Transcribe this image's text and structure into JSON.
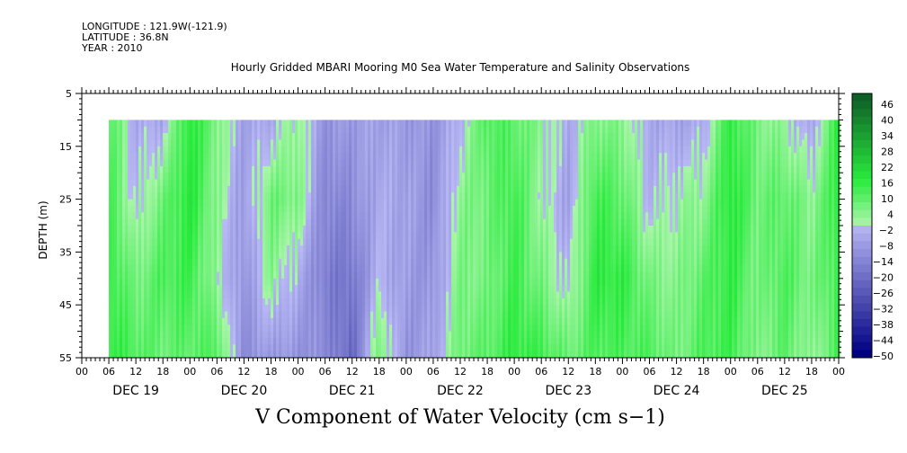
{
  "header": {
    "longitude": "LONGITUDE : 121.9W(-121.9)",
    "latitude": "LATITUDE : 36.8N",
    "year": "YEAR : 2010"
  },
  "chart_data": {
    "type": "heatmap",
    "title": "Hourly Gridded MBARI Mooring M0 Sea Water Temperature and Salinity Observations",
    "caption": "V Component of Water Velocity (cm s−1)",
    "ylabel": "DEPTH (m)",
    "ylim": [
      5,
      55
    ],
    "y_inverted": true,
    "yticks": [
      "5",
      "15",
      "25",
      "35",
      "45",
      "55"
    ],
    "hour_ticks": [
      "00",
      "06",
      "12",
      "18",
      "00",
      "06",
      "12",
      "18",
      "00",
      "06",
      "12",
      "18",
      "00",
      "06",
      "12",
      "18",
      "00",
      "06",
      "12",
      "18",
      "00",
      "06",
      "12",
      "18",
      "00",
      "06",
      "12",
      "18",
      "00"
    ],
    "days": [
      "DEC 19",
      "DEC 20",
      "DEC 21",
      "DEC 22",
      "DEC 23",
      "DEC 24",
      "DEC 25"
    ],
    "data_depth_range": [
      10,
      55
    ],
    "data_start": "DEC 19 06",
    "data_end": "DEC 26 00",
    "colorbar": {
      "labels": [
        "46",
        "40",
        "34",
        "28",
        "22",
        "16",
        "10",
        "4",
        "−2",
        "−8",
        "−14",
        "−20",
        "−26",
        "−32",
        "−38",
        "−44",
        "−50"
      ],
      "levels": [
        49,
        46,
        43,
        40,
        37,
        34,
        31,
        28,
        25,
        22,
        19,
        16,
        13,
        10,
        7,
        4,
        1,
        -2,
        -5,
        -8,
        -11,
        -14,
        -17,
        -20,
        -23,
        -26,
        -29,
        -32,
        -35,
        -38,
        -41,
        -44,
        -47,
        -50
      ]
    },
    "velocity_columns": [
      {
        "x": "DEC 19 06",
        "v": [
          12,
          14,
          16,
          16
        ]
      },
      {
        "x": "DEC 19 12",
        "v": [
          -4,
          -2,
          6,
          12
        ]
      },
      {
        "x": "DEC 19 18",
        "v": [
          -4,
          8,
          12,
          8
        ]
      },
      {
        "x": "DEC 20 00",
        "v": [
          18,
          18,
          14,
          10
        ]
      },
      {
        "x": "DEC 20 06",
        "v": [
          6,
          4,
          2,
          12
        ]
      },
      {
        "x": "DEC 20 12",
        "v": [
          -6,
          -8,
          -10,
          -12
        ]
      },
      {
        "x": "DEC 20 18",
        "v": [
          -4,
          8,
          4,
          -8
        ]
      },
      {
        "x": "DEC 21 00",
        "v": [
          4,
          6,
          -4,
          -10
        ]
      },
      {
        "x": "DEC 21 06",
        "v": [
          -10,
          -14,
          -16,
          -12
        ]
      },
      {
        "x": "DEC 21 12",
        "v": [
          -8,
          -12,
          -18,
          -22
        ]
      },
      {
        "x": "DEC 21 18",
        "v": [
          -6,
          -4,
          -2,
          8
        ]
      },
      {
        "x": "DEC 22 00",
        "v": [
          -8,
          -6,
          -8,
          -10
        ]
      },
      {
        "x": "DEC 22 06",
        "v": [
          -10,
          -12,
          -10,
          -6
        ]
      },
      {
        "x": "DEC 22 12",
        "v": [
          -2,
          4,
          6,
          8
        ]
      },
      {
        "x": "DEC 22 18",
        "v": [
          12,
          8,
          6,
          10
        ]
      },
      {
        "x": "DEC 23 00",
        "v": [
          10,
          14,
          14,
          16
        ]
      },
      {
        "x": "DEC 23 06",
        "v": [
          4,
          2,
          6,
          14
        ]
      },
      {
        "x": "DEC 23 12",
        "v": [
          -4,
          -6,
          -2,
          8
        ]
      },
      {
        "x": "DEC 23 18",
        "v": [
          6,
          14,
          16,
          12
        ]
      },
      {
        "x": "DEC 24 00",
        "v": [
          4,
          10,
          16,
          12
        ]
      },
      {
        "x": "DEC 24 06",
        "v": [
          -4,
          -2,
          6,
          12
        ]
      },
      {
        "x": "DEC 24 12",
        "v": [
          -6,
          2,
          4,
          6
        ]
      },
      {
        "x": "DEC 24 18",
        "v": [
          -4,
          4,
          10,
          12
        ]
      },
      {
        "x": "DEC 25 00",
        "v": [
          16,
          18,
          16,
          14
        ]
      },
      {
        "x": "DEC 25 06",
        "v": [
          6,
          8,
          6,
          4
        ]
      },
      {
        "x": "DEC 25 12",
        "v": [
          2,
          10,
          12,
          10
        ]
      },
      {
        "x": "DEC 25 18",
        "v": [
          -6,
          4,
          6,
          2
        ]
      },
      {
        "x": "DEC 26 00",
        "v": [
          16,
          16,
          14,
          12
        ]
      }
    ]
  }
}
